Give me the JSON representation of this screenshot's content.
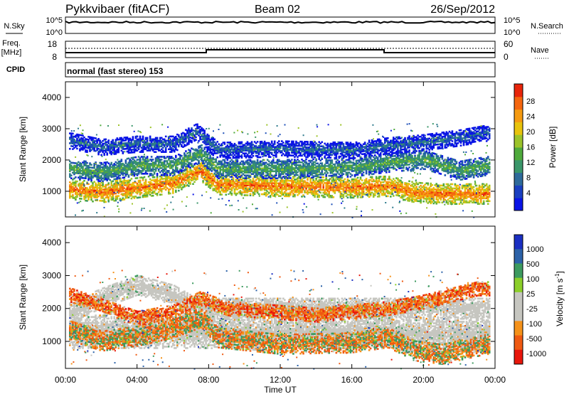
{
  "header": {
    "station": "Pykkvibaer (fitACF)",
    "beam": "Beam 02",
    "date": "26/Sep/2012"
  },
  "panels": {
    "nsky": {
      "left_label": "N.Sky",
      "right_label": "N.Search",
      "left_ticks": [
        "10^5",
        "10^0"
      ],
      "right_ticks": [
        "10^5",
        "10^0"
      ]
    },
    "freq": {
      "left_label_1": "Freq.",
      "left_label_2": "[MHz]",
      "right_label": "Nave",
      "left_ticks": [
        "18",
        "8"
      ],
      "right_ticks": [
        "60",
        "0"
      ]
    },
    "cpid": {
      "label": "CPID",
      "value": "normal (fast stereo) 153"
    }
  },
  "power_colorbar": {
    "title": "Power [dB]",
    "ticks": [
      "28",
      "24",
      "20",
      "16",
      "12",
      "8",
      "4"
    ]
  },
  "velocity_colorbar": {
    "title": "Velocity [m s",
    "title_sup": "-1",
    "title_end": "]",
    "ticks": [
      "1000",
      "500",
      "100",
      "25",
      "-25",
      "-100",
      "-500",
      "-1000"
    ]
  },
  "x_axis": {
    "label": "Time UT",
    "ticks": [
      "00:00",
      "04:00",
      "08:00",
      "12:00",
      "16:00",
      "20:00",
      "00:00"
    ]
  },
  "chart_data": [
    {
      "type": "heatmap",
      "title": "Power [dB]",
      "ylabel": "Slant Range [km]",
      "xlabel": "",
      "xlim": [
        0,
        24
      ],
      "ylim": [
        180,
        4500
      ],
      "yticks": [
        1000,
        2000,
        3000,
        4000
      ],
      "colorscale": "power",
      "bands": [
        {
          "name": "near-range",
          "points": [
            [
              0.3,
              1050
            ],
            [
              2,
              950
            ],
            [
              4,
              1100
            ],
            [
              6,
              1250
            ],
            [
              7.5,
              1650
            ],
            [
              8.5,
              1200
            ],
            [
              12,
              1150
            ],
            [
              16,
              1100
            ],
            [
              18,
              1150
            ],
            [
              19.5,
              950
            ],
            [
              21,
              900
            ],
            [
              23.5,
              900
            ]
          ],
          "width": 320,
          "value": 27
        },
        {
          "name": "mid-range",
          "points": [
            [
              0.3,
              1700
            ],
            [
              2,
              1600
            ],
            [
              4,
              1800
            ],
            [
              6,
              1800
            ],
            [
              7.5,
              2200
            ],
            [
              8.5,
              1700
            ],
            [
              12,
              1700
            ],
            [
              16,
              1750
            ],
            [
              18,
              1900
            ],
            [
              20,
              2000
            ],
            [
              22,
              1650
            ],
            [
              23.5,
              1800
            ]
          ],
          "width": 300,
          "value": 15
        },
        {
          "name": "far-range",
          "points": [
            [
              0.3,
              2600
            ],
            [
              2,
              2400
            ],
            [
              4,
              2500
            ],
            [
              6,
              2500
            ],
            [
              7.3,
              2900
            ],
            [
              8.5,
              2300
            ],
            [
              12,
              2350
            ],
            [
              16,
              2300
            ],
            [
              18,
              2450
            ],
            [
              20,
              2550
            ],
            [
              22,
              2700
            ],
            [
              23.5,
              2850
            ]
          ],
          "width": 260,
          "value": 9
        }
      ]
    },
    {
      "type": "heatmap",
      "title": "Velocity [m s-1]",
      "ylabel": "Slant Range [km]",
      "xlabel": "Time UT",
      "xlim": [
        0,
        24
      ],
      "ylim": [
        180,
        4500
      ],
      "yticks": [
        1000,
        2000,
        3000,
        4000
      ],
      "colorscale": "velocity",
      "bands": [
        {
          "name": "ground-scatter",
          "points": [
            [
              8,
              1300
            ],
            [
              10,
              1250
            ],
            [
              12,
              1250
            ],
            [
              16,
              1300
            ],
            [
              18,
              1350
            ],
            [
              19,
              1200
            ]
          ],
          "width": 520,
          "value": 0
        },
        {
          "name": "ground-scatter-dawn",
          "points": [
            [
              0.3,
              1900
            ],
            [
              2,
              2300
            ],
            [
              4,
              2700
            ],
            [
              6,
              2400
            ],
            [
              7.3,
              2000
            ]
          ],
          "width": 300,
          "value": 0
        },
        {
          "name": "near-range",
          "points": [
            [
              0.3,
              1300
            ],
            [
              2,
              1000
            ],
            [
              4,
              1150
            ],
            [
              6,
              1400
            ],
            [
              7.5,
              1700
            ],
            [
              8.5,
              1100
            ],
            [
              12,
              900
            ],
            [
              16,
              950
            ],
            [
              18,
              1100
            ],
            [
              19.5,
              700
            ],
            [
              21,
              600
            ],
            [
              23.5,
              900
            ]
          ],
          "width": 300,
          "value": -150
        },
        {
          "name": "mid-range",
          "points": [
            [
              0.3,
              2400
            ],
            [
              4,
              1700
            ],
            [
              6,
              1900
            ],
            [
              7.5,
              2300
            ],
            [
              9,
              2000
            ],
            [
              14,
              1800
            ],
            [
              18,
              2000
            ],
            [
              20,
              2200
            ],
            [
              23,
              2600
            ]
          ],
          "width": 220,
          "value": -400
        }
      ]
    }
  ]
}
